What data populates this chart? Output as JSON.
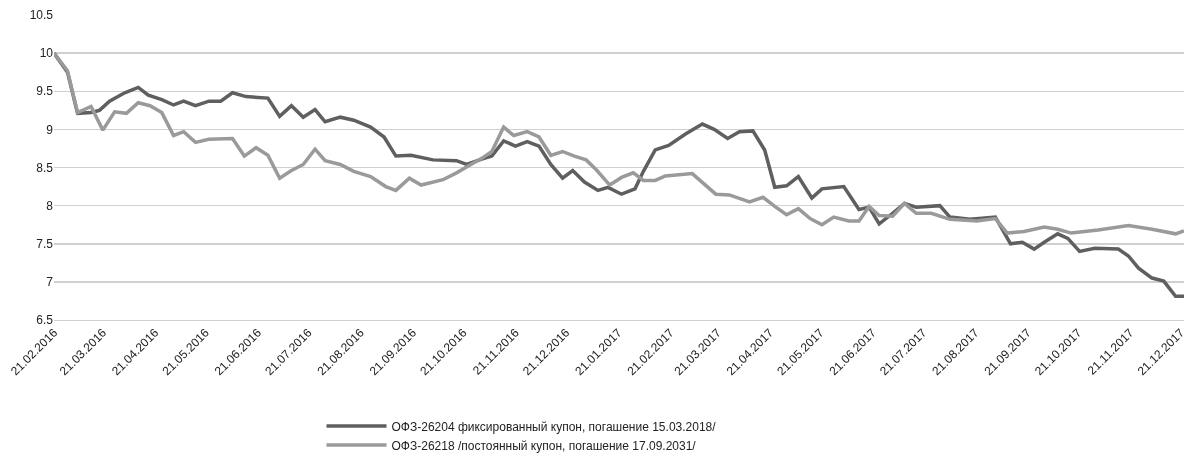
{
  "chart_data": {
    "type": "line",
    "grid": "y",
    "legend": "bottom",
    "line_style": "solid",
    "marker": "none",
    "xlim": [
      "2016-02-21",
      "2017-12-23"
    ],
    "ylim": [
      6.5,
      10.5
    ],
    "yticks": [
      6.5,
      7,
      7.5,
      8,
      8.5,
      9,
      9.5,
      10,
      10.5
    ],
    "xticks": [
      {
        "value": "2016-02-21",
        "label": "21.02.2016"
      },
      {
        "value": "2016-03-21",
        "label": "21.03.2016"
      },
      {
        "value": "2016-04-21",
        "label": "21.04.2016"
      },
      {
        "value": "2016-05-21",
        "label": "21.05.2016"
      },
      {
        "value": "2016-06-21",
        "label": "21.06.2016"
      },
      {
        "value": "2016-07-21",
        "label": "21.07.2016"
      },
      {
        "value": "2016-08-21",
        "label": "21.08.2016"
      },
      {
        "value": "2016-09-21",
        "label": "21.09.2016"
      },
      {
        "value": "2016-10-21",
        "label": "21.10.2016"
      },
      {
        "value": "2016-11-21",
        "label": "21.11.2016"
      },
      {
        "value": "2016-12-21",
        "label": "21.12.2016"
      },
      {
        "value": "2017-01-21",
        "label": "21.01.2017"
      },
      {
        "value": "2017-02-21",
        "label": "21.02.2017"
      },
      {
        "value": "2017-03-21",
        "label": "21.03.2017"
      },
      {
        "value": "2017-04-21",
        "label": "21.04.2017"
      },
      {
        "value": "2017-05-21",
        "label": "21.05.2017"
      },
      {
        "value": "2017-06-21",
        "label": "21.06.2017"
      },
      {
        "value": "2017-07-21",
        "label": "21.07.2017"
      },
      {
        "value": "2017-08-21",
        "label": "21.08.2017"
      },
      {
        "value": "2017-09-21",
        "label": "21.09.2017"
      },
      {
        "value": "2017-10-21",
        "label": "21.10.2017"
      },
      {
        "value": "2017-11-21",
        "label": "21.11.2017"
      },
      {
        "value": "2017-12-21",
        "label": "21.12.2017"
      }
    ],
    "series": [
      {
        "name": "ОФЗ-26204 фиксированный купон, погашение 15.03.2018/",
        "color": "#5f5f5f",
        "x": [
          "2016-02-21",
          "2016-02-29",
          "2016-03-06",
          "2016-03-14",
          "2016-03-19",
          "2016-03-25",
          "2016-04-03",
          "2016-04-11",
          "2016-04-17",
          "2016-04-25",
          "2016-05-02",
          "2016-05-08",
          "2016-05-15",
          "2016-05-23",
          "2016-05-30",
          "2016-06-06",
          "2016-06-14",
          "2016-06-27",
          "2016-07-04",
          "2016-07-11",
          "2016-07-18",
          "2016-07-25",
          "2016-07-31",
          "2016-08-09",
          "2016-08-17",
          "2016-08-27",
          "2016-09-04",
          "2016-09-11",
          "2016-09-20",
          "2016-10-03",
          "2016-10-17",
          "2016-10-23",
          "2016-11-01",
          "2016-11-07",
          "2016-11-14",
          "2016-11-21",
          "2016-11-28",
          "2016-12-05",
          "2016-12-12",
          "2016-12-19",
          "2016-12-25",
          "2017-01-01",
          "2017-01-09",
          "2017-01-15",
          "2017-01-23",
          "2017-01-31",
          "2017-02-05",
          "2017-02-12",
          "2017-02-20",
          "2017-03-02",
          "2017-03-12",
          "2017-03-19",
          "2017-03-27",
          "2017-04-03",
          "2017-04-11",
          "2017-04-18",
          "2017-04-24",
          "2017-05-01",
          "2017-05-08",
          "2017-05-16",
          "2017-05-22",
          "2017-06-04",
          "2017-06-13",
          "2017-06-19",
          "2017-06-25",
          "2017-07-03",
          "2017-07-10",
          "2017-07-17",
          "2017-07-31",
          "2017-08-06",
          "2017-08-18",
          "2017-09-02",
          "2017-09-11",
          "2017-09-18",
          "2017-09-25",
          "2017-10-01",
          "2017-10-09",
          "2017-10-15",
          "2017-10-22",
          "2017-10-31",
          "2017-11-14",
          "2017-11-20",
          "2017-11-26",
          "2017-12-04",
          "2017-12-11",
          "2017-12-18",
          "2017-12-23"
        ],
        "values": [
          10.0,
          9.75,
          9.21,
          9.22,
          9.25,
          9.37,
          9.48,
          9.55,
          9.45,
          9.39,
          9.32,
          9.37,
          9.31,
          9.37,
          9.37,
          9.48,
          9.43,
          9.41,
          9.17,
          9.31,
          9.16,
          9.26,
          9.1,
          9.16,
          9.12,
          9.03,
          8.9,
          8.65,
          8.66,
          8.6,
          8.59,
          8.54,
          8.61,
          8.65,
          8.85,
          8.78,
          8.84,
          8.78,
          8.54,
          8.36,
          8.46,
          8.31,
          8.2,
          8.24,
          8.15,
          8.22,
          8.45,
          8.73,
          8.79,
          8.94,
          9.07,
          9.0,
          8.88,
          8.97,
          8.98,
          8.73,
          8.24,
          8.26,
          8.38,
          8.1,
          8.22,
          8.25,
          7.95,
          7.98,
          7.76,
          7.9,
          8.03,
          7.98,
          8.0,
          7.85,
          7.82,
          7.85,
          7.5,
          7.52,
          7.43,
          7.52,
          7.63,
          7.57,
          7.4,
          7.44,
          7.43,
          7.34,
          7.18,
          7.05,
          7.01,
          6.81,
          6.81
        ]
      },
      {
        "name": "ОФЗ-26218 /постоянный купон, погашение 17.09.2031/",
        "color": "#9a9a9a",
        "x": [
          "2016-02-21",
          "2016-02-29",
          "2016-03-06",
          "2016-03-14",
          "2016-03-21",
          "2016-03-28",
          "2016-04-04",
          "2016-04-11",
          "2016-04-18",
          "2016-04-25",
          "2016-05-02",
          "2016-05-08",
          "2016-05-15",
          "2016-05-23",
          "2016-06-06",
          "2016-06-13",
          "2016-06-20",
          "2016-06-27",
          "2016-07-04",
          "2016-07-11",
          "2016-07-18",
          "2016-07-25",
          "2016-07-31",
          "2016-08-09",
          "2016-08-17",
          "2016-08-27",
          "2016-09-05",
          "2016-09-11",
          "2016-09-19",
          "2016-09-26",
          "2016-10-09",
          "2016-10-17",
          "2016-10-24",
          "2016-11-01",
          "2016-11-07",
          "2016-11-14",
          "2016-11-20",
          "2016-11-28",
          "2016-12-05",
          "2016-12-12",
          "2016-12-19",
          "2016-12-26",
          "2017-01-02",
          "2017-01-08",
          "2017-01-16",
          "2017-01-23",
          "2017-01-30",
          "2017-02-05",
          "2017-02-12",
          "2017-02-18",
          "2017-03-06",
          "2017-03-20",
          "2017-03-28",
          "2017-04-09",
          "2017-04-17",
          "2017-04-24",
          "2017-05-01",
          "2017-05-08",
          "2017-05-15",
          "2017-05-22",
          "2017-05-29",
          "2017-06-07",
          "2017-06-13",
          "2017-06-19",
          "2017-06-25",
          "2017-07-03",
          "2017-07-10",
          "2017-07-17",
          "2017-07-26",
          "2017-08-06",
          "2017-08-22",
          "2017-09-02",
          "2017-09-09",
          "2017-09-19",
          "2017-10-01",
          "2017-10-09",
          "2017-10-17",
          "2017-11-02",
          "2017-11-20",
          "2017-12-04",
          "2017-12-18",
          "2017-12-23"
        ],
        "values": [
          10.0,
          9.77,
          9.22,
          9.3,
          8.99,
          9.23,
          9.21,
          9.35,
          9.31,
          9.22,
          8.92,
          8.97,
          8.83,
          8.87,
          8.88,
          8.65,
          8.76,
          8.66,
          8.36,
          8.46,
          8.54,
          8.74,
          8.59,
          8.54,
          8.45,
          8.38,
          8.25,
          8.2,
          8.36,
          8.27,
          8.34,
          8.43,
          8.52,
          8.62,
          8.71,
          9.03,
          8.92,
          8.97,
          8.9,
          8.66,
          8.71,
          8.65,
          8.6,
          8.47,
          8.27,
          8.37,
          8.43,
          8.33,
          8.33,
          8.39,
          8.42,
          8.15,
          8.14,
          8.05,
          8.11,
          7.99,
          7.88,
          7.96,
          7.83,
          7.75,
          7.85,
          7.8,
          7.8,
          7.99,
          7.87,
          7.86,
          8.03,
          7.9,
          7.9,
          7.82,
          7.8,
          7.83,
          7.64,
          7.66,
          7.72,
          7.69,
          7.64,
          7.68,
          7.74,
          7.69,
          7.63,
          7.67
        ]
      }
    ]
  }
}
